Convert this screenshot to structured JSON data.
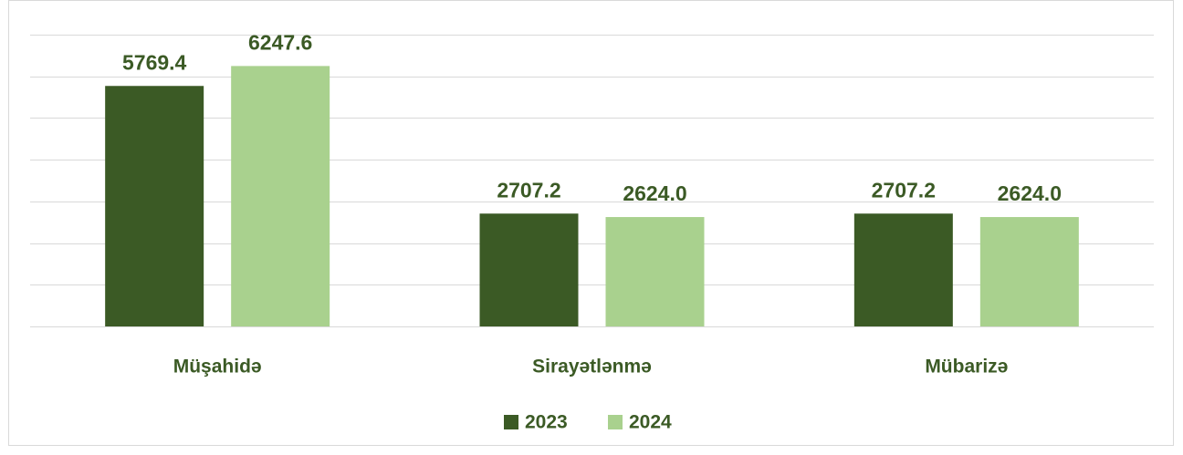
{
  "chart_data": {
    "type": "bar",
    "categories": [
      "Müşahidə",
      "Sirayətlənmə",
      "Mübarizə"
    ],
    "series": [
      {
        "name": "2023",
        "color": "#3b5a25",
        "values": [
          5769.4,
          2707.2,
          2707.2
        ],
        "value_labels": [
          "5769.4",
          "2707.2",
          "2707.2"
        ]
      },
      {
        "name": "2024",
        "color": "#a9d18e",
        "values": [
          6247.6,
          2624.0,
          2624.0
        ],
        "value_labels": [
          "6247.6",
          "2624.0",
          "2624.0"
        ]
      }
    ],
    "ylim": [
      0,
      7000
    ],
    "yticks": [
      0,
      1000,
      2000,
      3000,
      4000,
      5000,
      6000,
      7000
    ],
    "grid": true,
    "legend": "bottom"
  }
}
